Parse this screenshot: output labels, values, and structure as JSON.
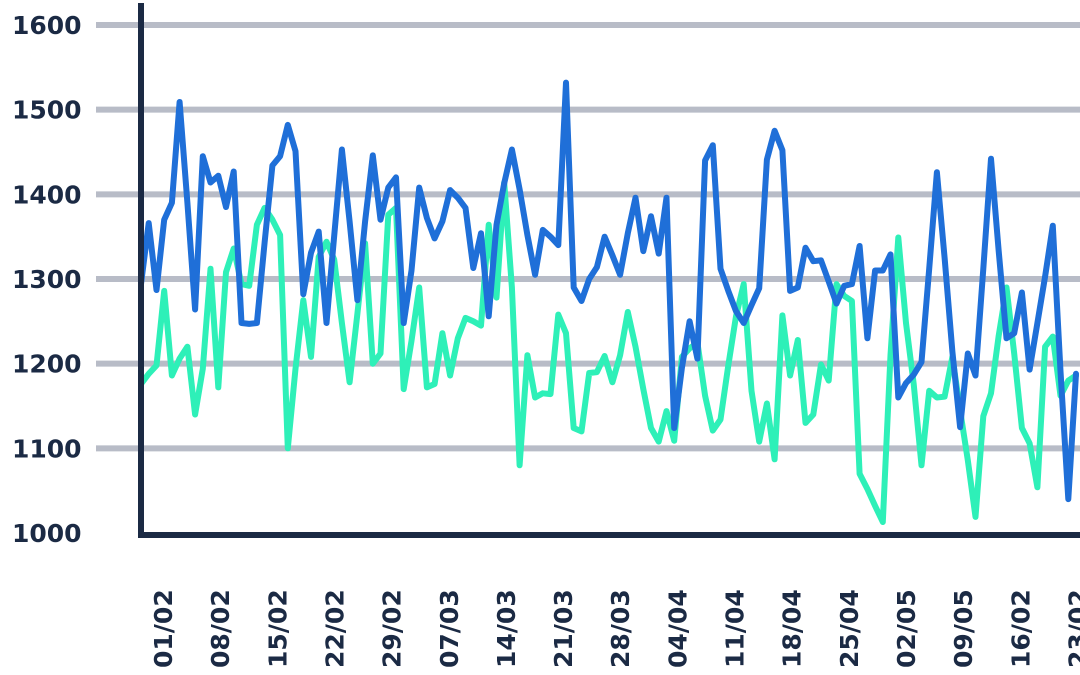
{
  "chart_data": {
    "type": "line",
    "title": "",
    "xlabel": "",
    "ylabel": "",
    "ylim": [
      1000,
      1600
    ],
    "yticks": [
      1600,
      1500,
      1400,
      1300,
      1200,
      1100,
      1000
    ],
    "grid": true,
    "x_tick_labels": [
      "01/02",
      "08/02",
      "15/02",
      "22/02",
      "29/02",
      "07/03",
      "14/03",
      "21/03",
      "28/03",
      "04/04",
      "11/04",
      "18/04",
      "25/04",
      "02/05",
      "09/05",
      "16/02",
      "23/02"
    ],
    "colors": {
      "series_1": "#1f6fd8",
      "series_2": "#2ef0b8",
      "axis": "#1b2a44",
      "grid": "#b8bcc7"
    },
    "series": [
      {
        "values": [
          1294,
          1366,
          1287,
          1370,
          1390,
          1509,
          1390,
          1264,
          1445,
          1414,
          1422,
          1385,
          1427,
          1248,
          1247,
          1248,
          1343,
          1434,
          1445,
          1482,
          1451,
          1282,
          1331,
          1356,
          1248,
          1351,
          1453,
          1368,
          1275,
          1368,
          1446,
          1370,
          1408,
          1420,
          1248,
          1310,
          1408,
          1372,
          1348,
          1368,
          1405,
          1396,
          1384,
          1313,
          1354,
          1256,
          1364,
          1413,
          1453,
          1406,
          1352,
          1305,
          1358,
          1350,
          1340,
          1532,
          1290,
          1274,
          1300,
          1314,
          1350,
          1328,
          1305,
          1354,
          1396,
          1333,
          1374,
          1330,
          1396,
          1124,
          1195,
          1250,
          1206,
          1440,
          1458,
          1312,
          1286,
          1262,
          1248,
          1269,
          1289,
          1441,
          1475,
          1452,
          1286,
          1290,
          1337,
          1321,
          1322,
          1297,
          1271,
          1292,
          1294,
          1339,
          1230,
          1310,
          1310,
          1329,
          1160,
          1177,
          1187,
          1202,
          1312,
          1426,
          1325,
          1214,
          1125,
          1212,
          1186,
          1312,
          1442,
          1333,
          1230,
          1236,
          1284,
          1193,
          1248,
          1303,
          1363,
          1191,
          1040,
          1188
        ]
      },
      {
        "values": [
          1176,
          1188,
          1198,
          1286,
          1186,
          1206,
          1220,
          1140,
          1194,
          1312,
          1172,
          1308,
          1336,
          1294,
          1292,
          1364,
          1384,
          1370,
          1352,
          1100,
          1194,
          1275,
          1208,
          1326,
          1344,
          1323,
          1248,
          1178,
          1259,
          1342,
          1200,
          1212,
          1376,
          1384,
          1170,
          1227,
          1290,
          1172,
          1176,
          1236,
          1186,
          1230,
          1254,
          1250,
          1245,
          1364,
          1278,
          1414,
          1290,
          1080,
          1210,
          1160,
          1165,
          1164,
          1258,
          1236,
          1124,
          1120,
          1189,
          1190,
          1209,
          1178,
          1210,
          1261,
          1220,
          1170,
          1124,
          1108,
          1144,
          1109,
          1208,
          1218,
          1225,
          1162,
          1121,
          1134,
          1198,
          1256,
          1294,
          1168,
          1108,
          1153,
          1087,
          1257,
          1186,
          1228,
          1130,
          1140,
          1199,
          1180,
          1294,
          1280,
          1274,
          1070,
          1052,
          1032,
          1013,
          1210,
          1349,
          1248,
          1176,
          1080,
          1168,
          1160,
          1161,
          1208,
          1145,
          1086,
          1019,
          1138,
          1165,
          1233,
          1290,
          1212,
          1124,
          1106,
          1054,
          1220,
          1232,
          1162,
          1180,
          1186
        ]
      }
    ]
  }
}
